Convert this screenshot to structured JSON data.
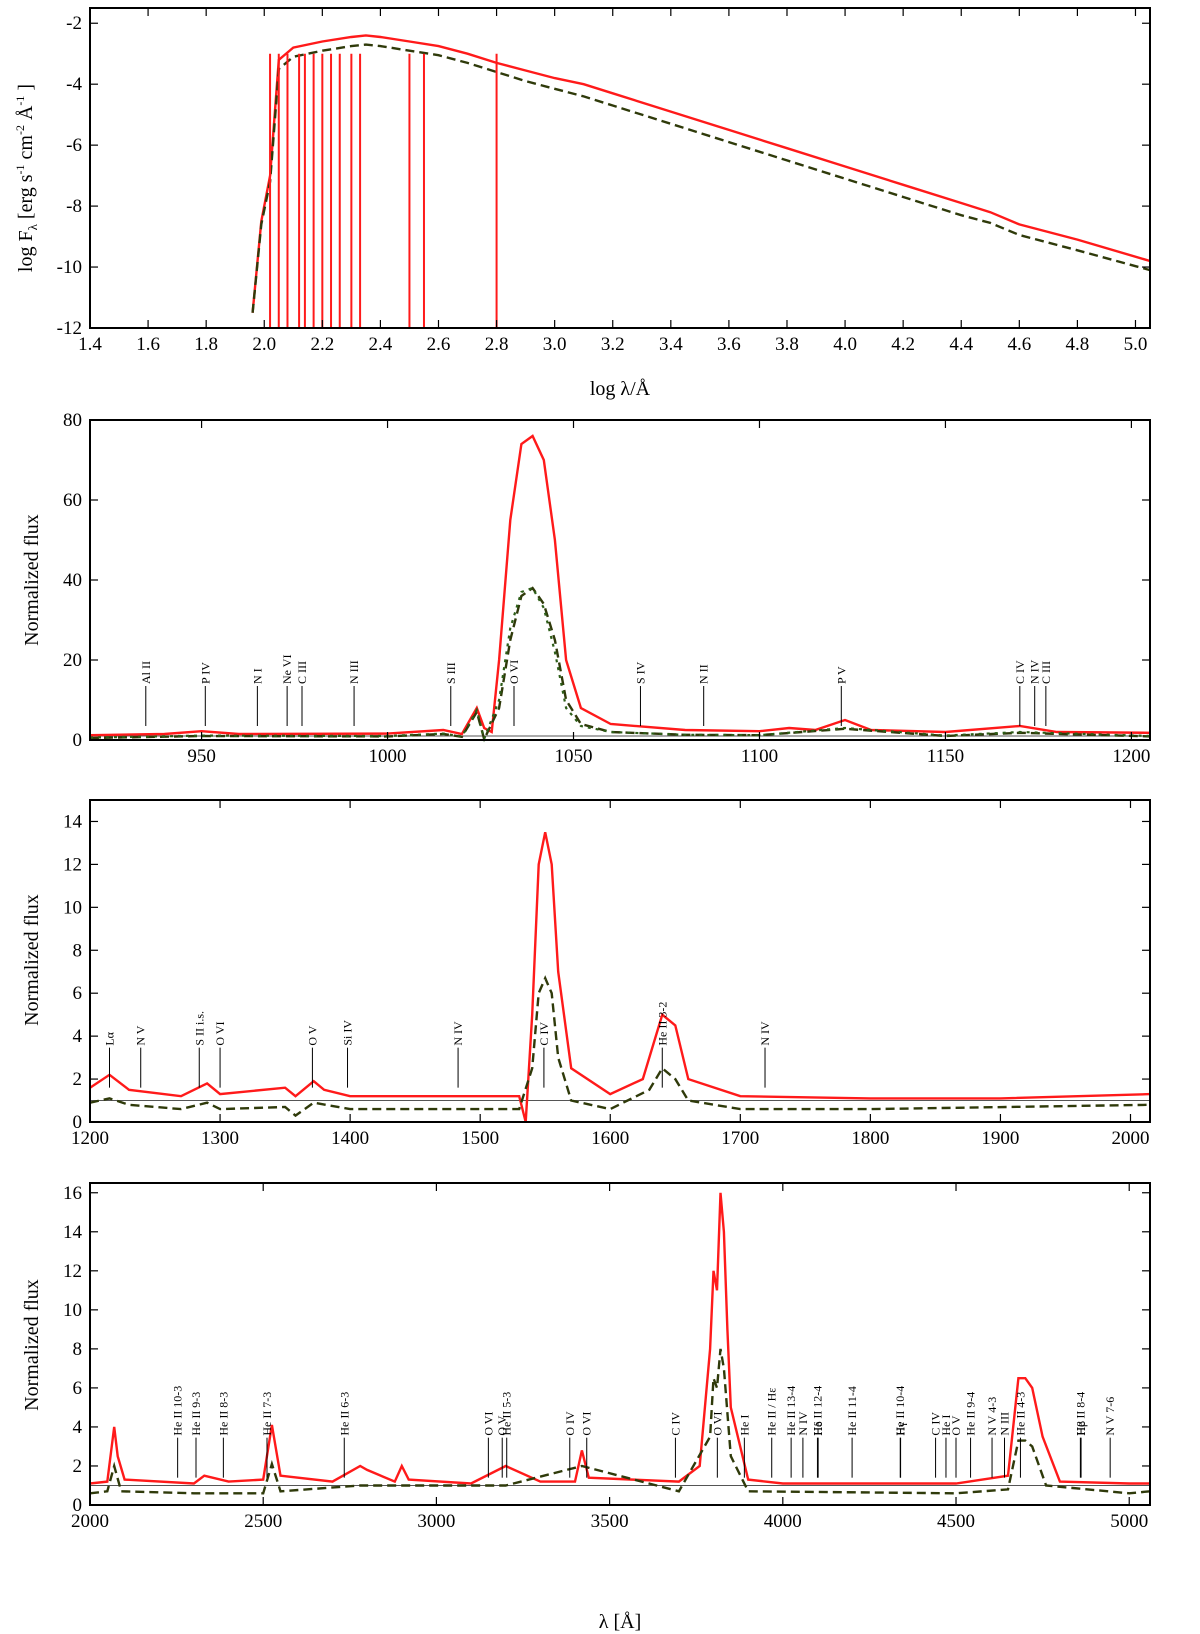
{
  "chart_data": [
    {
      "type": "line",
      "xlabel": "log λ/Å",
      "ylabel": "log Fλ [erg s-1 cm-2 Å-1]",
      "xlim": [
        1.4,
        5.05
      ],
      "ylim": [
        -12,
        -1.5
      ],
      "x_ticks": [
        "1.4",
        "1.6",
        "1.8",
        "2.0",
        "2.2",
        "2.4",
        "2.6",
        "2.8",
        "3.0",
        "3.2",
        "3.4",
        "3.6",
        "3.8",
        "4.0",
        "4.2",
        "4.4",
        "4.6",
        "4.8",
        "5.0"
      ],
      "y_ticks": [
        "-12",
        "-10",
        "-8",
        "-6",
        "-4",
        "-2"
      ],
      "series": [
        {
          "style": "solid",
          "color": "#ff1a1a",
          "x": [
            1.96,
            1.99,
            2.02,
            2.05,
            2.1,
            2.2,
            2.3,
            2.35,
            2.4,
            2.5,
            2.6,
            2.7,
            2.8,
            2.9,
            3.0,
            3.1,
            3.2,
            3.4,
            3.6,
            3.8,
            4.0,
            4.2,
            4.4,
            4.5,
            4.6,
            4.8,
            5.05
          ],
          "y": [
            -11.5,
            -8.5,
            -7.0,
            -3.2,
            -2.8,
            -2.6,
            -2.45,
            -2.4,
            -2.45,
            -2.6,
            -2.75,
            -3.0,
            -3.3,
            -3.55,
            -3.8,
            -4.0,
            -4.3,
            -4.9,
            -5.5,
            -6.1,
            -6.7,
            -7.3,
            -7.9,
            -8.2,
            -8.6,
            -9.1,
            -9.8
          ]
        },
        {
          "style": "dashed",
          "color": "#2f3a0a",
          "x": [
            1.96,
            1.99,
            2.02,
            2.05,
            2.1,
            2.2,
            2.3,
            2.35,
            2.4,
            2.5,
            2.6,
            2.7,
            2.8,
            2.9,
            3.0,
            3.1,
            3.2,
            3.4,
            3.6,
            3.8,
            4.0,
            4.2,
            4.4,
            4.5,
            4.6,
            4.8,
            5.05
          ],
          "y": [
            -11.5,
            -8.6,
            -7.2,
            -3.5,
            -3.1,
            -2.9,
            -2.75,
            -2.7,
            -2.75,
            -2.9,
            -3.05,
            -3.3,
            -3.6,
            -3.9,
            -4.15,
            -4.4,
            -4.7,
            -5.3,
            -5.9,
            -6.5,
            -7.1,
            -7.7,
            -8.3,
            -8.55,
            -8.95,
            -9.45,
            -10.1
          ]
        }
      ]
    },
    {
      "type": "line",
      "xlabel": "",
      "ylabel": "Normalized flux",
      "xlim": [
        920,
        1205
      ],
      "ylim": [
        0,
        80
      ],
      "x_ticks": [
        "950",
        "1000",
        "1050",
        "1100",
        "1150",
        "1200"
      ],
      "y_ticks": [
        "0",
        "20",
        "40",
        "60",
        "80"
      ],
      "series": [
        {
          "style": "solid",
          "color": "#ff1a1a",
          "x": [
            920,
            940,
            950,
            960,
            1000,
            1015,
            1020,
            1024,
            1026,
            1028,
            1030,
            1033,
            1036,
            1039,
            1042,
            1045,
            1048,
            1052,
            1060,
            1080,
            1100,
            1108,
            1115,
            1123,
            1130,
            1150,
            1170,
            1180,
            1205
          ],
          "y": [
            1.2,
            1.5,
            2.2,
            1.5,
            1.6,
            2.5,
            1.5,
            8.0,
            3.0,
            2.0,
            20,
            55,
            74,
            76,
            70,
            50,
            20,
            8,
            4,
            2.5,
            2.2,
            3.0,
            2.5,
            5.0,
            2.5,
            2.0,
            3.5,
            2.0,
            1.8
          ]
        },
        {
          "style": "dashed",
          "color": "#2f3a0a",
          "x": [
            920,
            950,
            1000,
            1015,
            1020,
            1024,
            1026,
            1030,
            1033,
            1036,
            1039,
            1042,
            1045,
            1048,
            1052,
            1060,
            1080,
            1100,
            1123,
            1150,
            1170,
            1205
          ],
          "y": [
            0.5,
            1.0,
            0.9,
            1.5,
            0.8,
            7.0,
            0.2,
            8,
            25,
            36,
            38,
            34,
            25,
            10,
            4,
            2,
            1.3,
            1.2,
            2.8,
            1.0,
            1.8,
            0.9
          ]
        },
        {
          "style": "dotted",
          "color": "#2d5e18",
          "x": [
            920,
            950,
            1000,
            1015,
            1020,
            1024,
            1026,
            1030,
            1033,
            1036,
            1039,
            1042,
            1045,
            1048,
            1052,
            1060,
            1080,
            1100,
            1123,
            1150,
            1170,
            1205
          ],
          "y": [
            0.6,
            1.1,
            1.0,
            1.6,
            0.9,
            7.5,
            0.3,
            10,
            28,
            37,
            38,
            33,
            22,
            8,
            3.5,
            2,
            1.3,
            1.2,
            3.0,
            1.1,
            2.0,
            1.0
          ]
        }
      ],
      "line_ids": [
        "Al II",
        "P IV",
        "N I",
        "Ne VI",
        "C III",
        "N III",
        "S III",
        "O VI",
        "S IV",
        "N II",
        "P V",
        "C IV",
        "N IV",
        "C III"
      ]
    },
    {
      "type": "line",
      "xlabel": "",
      "ylabel": "Normalized flux",
      "xlim": [
        1200,
        2015
      ],
      "ylim": [
        0,
        15
      ],
      "x_ticks": [
        "1200",
        "1300",
        "1400",
        "1500",
        "1600",
        "1700",
        "1800",
        "1900",
        "2000"
      ],
      "y_ticks": [
        "0",
        "2",
        "4",
        "6",
        "8",
        "10",
        "12",
        "14"
      ],
      "series": [
        {
          "style": "solid",
          "color": "#ff1a1a",
          "x": [
            1200,
            1215,
            1230,
            1270,
            1290,
            1300,
            1350,
            1358,
            1372,
            1380,
            1400,
            1450,
            1500,
            1530,
            1535,
            1540,
            1545,
            1550,
            1555,
            1560,
            1570,
            1600,
            1625,
            1635,
            1640,
            1650,
            1660,
            1700,
            1800,
            1900,
            2015
          ],
          "y": [
            1.6,
            2.2,
            1.5,
            1.2,
            1.8,
            1.3,
            1.6,
            1.2,
            1.9,
            1.5,
            1.2,
            1.2,
            1.2,
            1.2,
            -0.8,
            5,
            12,
            13.5,
            12,
            7,
            2.5,
            1.3,
            2.0,
            4.0,
            5.0,
            4.5,
            2.0,
            1.2,
            1.1,
            1.1,
            1.3
          ]
        },
        {
          "style": "dashed",
          "color": "#2f3a0a",
          "x": [
            1200,
            1215,
            1230,
            1270,
            1290,
            1300,
            1350,
            1358,
            1372,
            1400,
            1500,
            1530,
            1540,
            1545,
            1550,
            1555,
            1560,
            1570,
            1600,
            1630,
            1640,
            1650,
            1660,
            1700,
            1800,
            2015
          ],
          "y": [
            0.9,
            1.1,
            0.8,
            0.6,
            0.9,
            0.6,
            0.7,
            0.3,
            0.9,
            0.6,
            0.6,
            0.6,
            2.5,
            6.0,
            6.7,
            6.0,
            3.0,
            1.0,
            0.6,
            1.5,
            2.5,
            2.0,
            1.0,
            0.6,
            0.6,
            0.8
          ]
        }
      ],
      "line_ids": [
        "Lα",
        "N V",
        "S II i.s.",
        "O VI",
        "O V",
        "Si IV",
        "N IV",
        "C IV",
        "He II 3-2",
        "N IV"
      ]
    },
    {
      "type": "line",
      "xlabel": "λ [Å]",
      "ylabel": "Normalized flux",
      "xlim": [
        2000,
        5060
      ],
      "ylim": [
        0,
        16.5
      ],
      "x_ticks": [
        "2000",
        "2500",
        "3000",
        "3500",
        "4000",
        "4500",
        "5000"
      ],
      "y_ticks": [
        "0",
        "2",
        "4",
        "6",
        "8",
        "10",
        "12",
        "14",
        "16"
      ],
      "series": [
        {
          "style": "solid",
          "color": "#ff1a1a",
          "x": [
            2000,
            2050,
            2070,
            2080,
            2100,
            2300,
            2330,
            2400,
            2500,
            2525,
            2550,
            2700,
            2780,
            2800,
            2880,
            2900,
            2920,
            3100,
            3200,
            3300,
            3400,
            3420,
            3440,
            3700,
            3760,
            3790,
            3800,
            3810,
            3820,
            3830,
            3840,
            3850,
            3900,
            4000,
            4500,
            4650,
            4680,
            4700,
            4720,
            4750,
            4800,
            5000,
            5060
          ],
          "y": [
            1.1,
            1.2,
            4.0,
            2.5,
            1.3,
            1.1,
            1.5,
            1.2,
            1.3,
            4.1,
            1.5,
            1.2,
            2.0,
            1.8,
            1.2,
            2.0,
            1.3,
            1.1,
            2.0,
            1.2,
            1.2,
            2.8,
            1.4,
            1.2,
            2.0,
            8,
            12,
            11,
            16,
            14,
            9,
            5,
            1.3,
            1.1,
            1.1,
            1.5,
            6.5,
            6.5,
            6.0,
            3.5,
            1.2,
            1.1,
            1.1
          ]
        },
        {
          "style": "dashed",
          "color": "#2f3a0a",
          "x": [
            2000,
            2050,
            2070,
            2090,
            2300,
            2500,
            2525,
            2550,
            2780,
            3200,
            3420,
            3700,
            3790,
            3800,
            3810,
            3820,
            3830,
            3850,
            3900,
            4500,
            4650,
            4680,
            4700,
            4720,
            4760,
            5000,
            5060
          ],
          "y": [
            0.6,
            0.7,
            2.0,
            0.7,
            0.6,
            0.6,
            2.1,
            0.7,
            1.0,
            1.0,
            2.0,
            0.7,
            3.5,
            6.5,
            6.0,
            8.0,
            7.0,
            2.5,
            0.7,
            0.6,
            0.8,
            3.3,
            3.3,
            3.0,
            1.0,
            0.6,
            0.7
          ]
        }
      ],
      "line_ids": [
        "He II 10-3",
        "He II 9-3",
        "He II 8-3",
        "He II 7-3",
        "He II 6-3",
        "O VI",
        "O V",
        "He II 5-3",
        "O IV",
        "O VI",
        "C IV",
        "O VI",
        "He I",
        "He II / Hε",
        "He II 13-4",
        "N IV",
        "He II 12-4",
        "Hδ",
        "He II 11-4",
        "He II 10-4",
        "Hγ",
        "C IV",
        "He I",
        "O V",
        "He II 9-4",
        "N V 4-3",
        "N III",
        "He II 4-3",
        "He II 8-4",
        "Hβ",
        "N V 7-6"
      ]
    }
  ],
  "ylabel_top": "log F",
  "ylabel_top_sub": "λ",
  "ylabel_top_units": "[erg s",
  "ylabel_top_units2": "cm",
  "ylabel_top_units3": "Å",
  "ylabel_top_units4": "]",
  "exp_neg1": "-1",
  "exp_neg2": "-2",
  "exp_neg1b": "-1"
}
